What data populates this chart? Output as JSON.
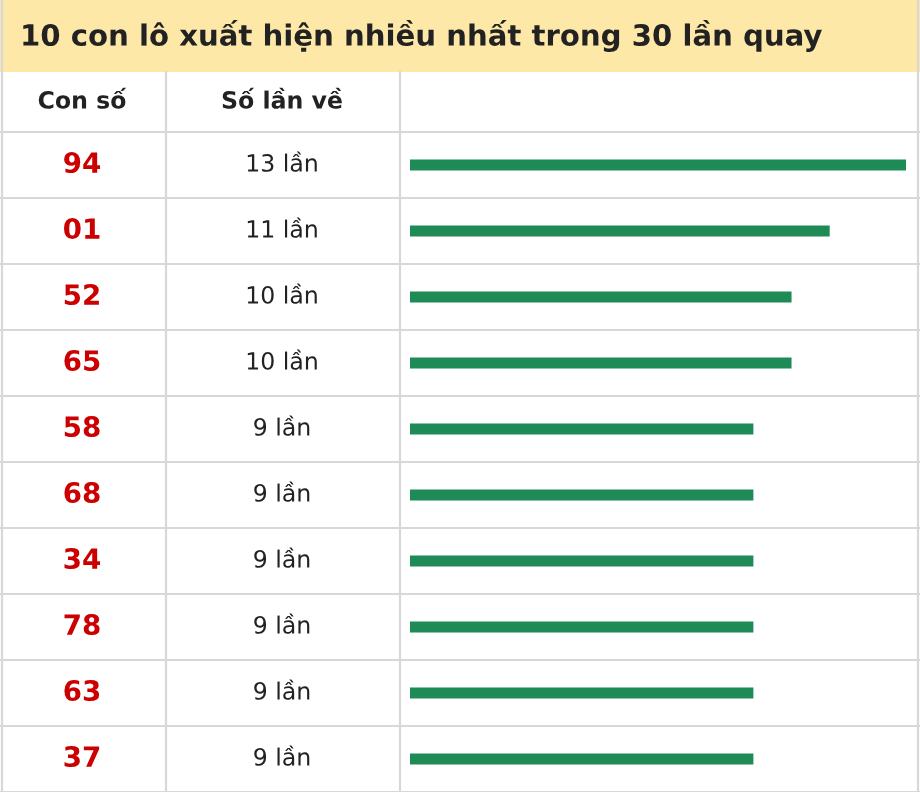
{
  "chart_data": {
    "type": "bar",
    "orientation": "horizontal",
    "title": "10 con lô xuất hiện nhiều nhất trong 30 lần quay",
    "annotations": [
      "Con số",
      "Số lần về"
    ],
    "categories": [
      "94",
      "01",
      "52",
      "65",
      "58",
      "68",
      "34",
      "78",
      "63",
      "37"
    ],
    "values": [
      13,
      11,
      10,
      10,
      9,
      9,
      9,
      9,
      9,
      9
    ],
    "value_labels": [
      "13 lần",
      "11 lần",
      "10 lần",
      "10 lần",
      "9 lần",
      "9 lần",
      "9 lần",
      "9 lần",
      "9 lần",
      "9 lần"
    ],
    "color": "#1e8a55",
    "xlim": [
      0,
      13
    ],
    "tick_labels": false
  }
}
